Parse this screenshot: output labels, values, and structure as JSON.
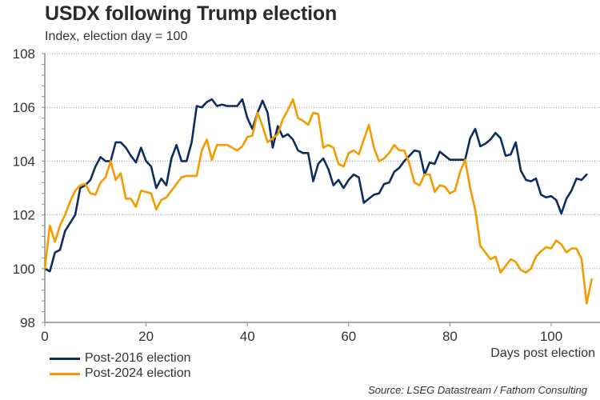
{
  "chart_data": {
    "type": "line",
    "title": "USDX following Trump election",
    "subtitle": "Index, election day = 100",
    "xlabel": "Days post election",
    "ylabel": "",
    "xlim": [
      0,
      110
    ],
    "ylim": [
      98,
      108
    ],
    "x_ticks": [
      0,
      20,
      40,
      60,
      80,
      100
    ],
    "y_ticks": [
      98,
      100,
      102,
      104,
      106,
      108
    ],
    "grid": "horizontal dotted",
    "legend_position": "bottom-left",
    "source": "Source: LSEG Datastream / Fathom Consulting",
    "series": [
      {
        "name": "Post-2016 election",
        "color": "#0d2d5e",
        "values": [
          100.0,
          99.9,
          100.6,
          100.7,
          101.4,
          101.7,
          102.0,
          103.0,
          103.1,
          103.3,
          103.8,
          104.15,
          104.0,
          104.0,
          104.7,
          104.7,
          104.5,
          104.2,
          103.95,
          104.5,
          104.0,
          103.8,
          103.0,
          103.35,
          103.1,
          104.1,
          104.6,
          104.0,
          104.0,
          104.7,
          106.05,
          106.0,
          106.2,
          106.3,
          106.05,
          106.1,
          106.05,
          106.05,
          106.05,
          106.3,
          105.6,
          105.2,
          105.8,
          106.25,
          105.8,
          104.5,
          105.3,
          104.9,
          105.0,
          104.8,
          104.4,
          104.3,
          104.3,
          103.25,
          103.9,
          104.1,
          103.7,
          103.1,
          103.3,
          103.0,
          103.3,
          103.5,
          103.4,
          102.45,
          102.6,
          102.75,
          102.8,
          103.15,
          103.2,
          103.6,
          103.75,
          104.0,
          104.2,
          104.4,
          104.35,
          103.5,
          103.95,
          103.9,
          104.35,
          104.2,
          104.05,
          104.05,
          104.05,
          104.05,
          104.85,
          105.2,
          104.55,
          104.65,
          104.8,
          105.05,
          104.85,
          104.2,
          104.25,
          104.7,
          103.65,
          103.3,
          103.25,
          103.35,
          102.75,
          102.65,
          102.7,
          102.55,
          102.05,
          102.6,
          102.9,
          103.35,
          103.3,
          103.5
        ]
      },
      {
        "name": "Post-2024 election",
        "color": "#f59b00",
        "values": [
          100.0,
          101.6,
          101.0,
          101.6,
          102.0,
          102.5,
          102.9,
          103.1,
          103.15,
          102.8,
          102.75,
          103.2,
          103.4,
          104.0,
          103.3,
          103.55,
          102.6,
          102.6,
          102.3,
          102.9,
          102.85,
          102.8,
          102.2,
          102.55,
          102.65,
          102.9,
          103.15,
          103.4,
          103.45,
          103.45,
          103.45,
          104.4,
          104.8,
          104.05,
          104.6,
          104.6,
          104.6,
          104.5,
          104.4,
          104.55,
          104.9,
          104.95,
          105.8,
          105.3,
          104.7,
          104.85,
          105.0,
          105.55,
          105.9,
          106.3,
          105.6,
          105.5,
          105.35,
          105.8,
          105.75,
          104.5,
          104.6,
          104.5,
          103.9,
          103.8,
          104.3,
          104.4,
          104.25,
          104.8,
          105.35,
          104.5,
          104.0,
          104.1,
          104.3,
          104.6,
          104.4,
          104.4,
          103.9,
          103.2,
          103.1,
          103.5,
          103.5,
          102.85,
          103.1,
          103.05,
          102.8,
          102.9,
          103.6,
          104.05,
          103.0,
          102.2,
          100.85,
          100.6,
          100.35,
          100.45,
          99.85,
          100.1,
          100.35,
          100.25,
          99.95,
          99.85,
          100.0,
          100.45,
          100.65,
          100.8,
          100.75,
          101.05,
          100.9,
          100.6,
          100.75,
          100.75,
          100.35,
          98.7,
          99.6
        ]
      }
    ]
  },
  "title": "USDX following Trump election",
  "subtitle": "Index, election day = 100",
  "legend": {
    "items": [
      {
        "label": "Post-2016 election",
        "color": "#0d2d5e"
      },
      {
        "label": "Post-2024 election",
        "color": "#f59b00"
      }
    ]
  },
  "source": "Source: LSEG Datastream / Fathom Consulting"
}
